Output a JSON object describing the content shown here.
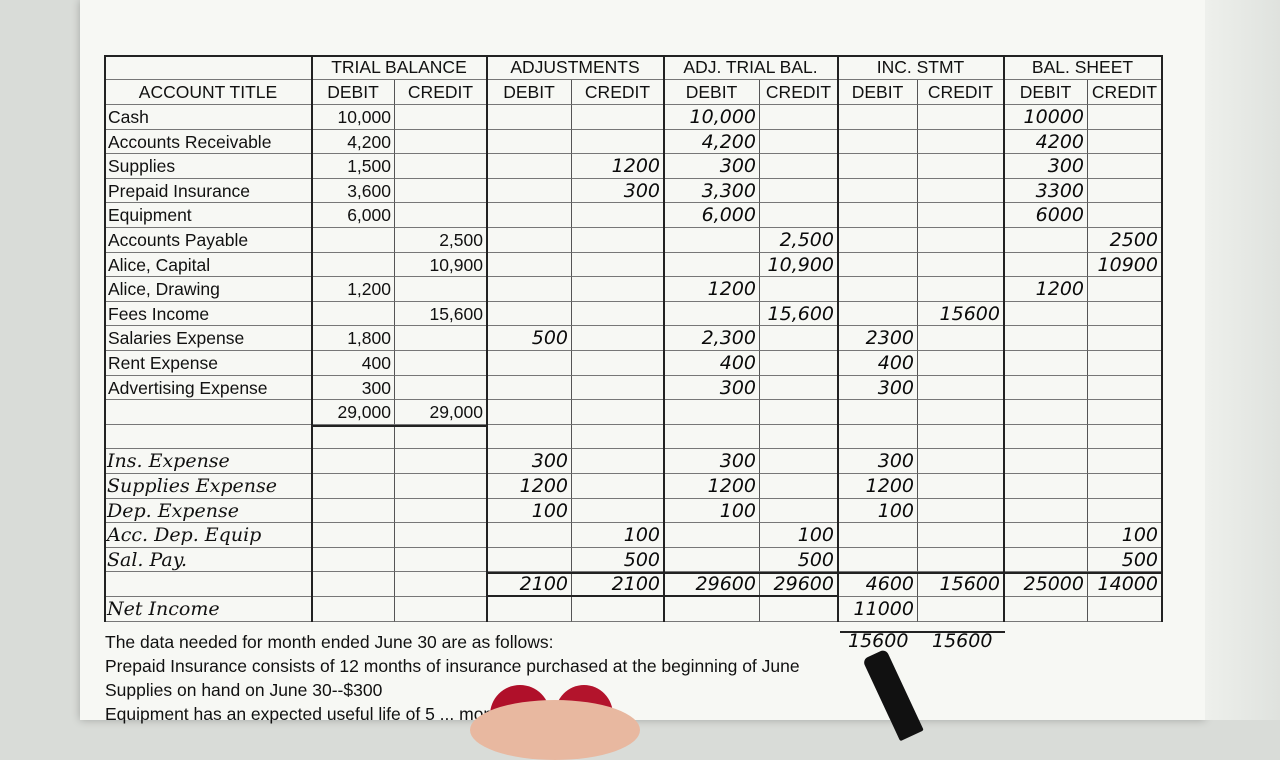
{
  "header": {
    "groups": [
      "TRIAL BALANCE",
      "ADJUSTMENTS",
      "ADJ. TRIAL BAL.",
      "INC. STMT",
      "BAL. SHEET"
    ],
    "account_title": "ACCOUNT TITLE",
    "sub": [
      "DEBIT",
      "CREDIT",
      "DEBIT",
      "CREDIT",
      "DEBIT",
      "CREDIT",
      "DEBIT",
      "CREDIT",
      "DEBIT",
      "CREDIT"
    ]
  },
  "rows": [
    {
      "title": "Cash",
      "v": [
        "10,000",
        "",
        "",
        "",
        "10,000",
        "",
        "",
        "",
        "10000",
        ""
      ]
    },
    {
      "title": "Accounts Receivable",
      "v": [
        "4,200",
        "",
        "",
        "",
        "4,200",
        "",
        "",
        "",
        "4200",
        ""
      ]
    },
    {
      "title": "Supplies",
      "v": [
        "1,500",
        "",
        "",
        "1200",
        "300",
        "",
        "",
        "",
        "300",
        ""
      ]
    },
    {
      "title": "Prepaid Insurance",
      "v": [
        "3,600",
        "",
        "",
        "300",
        "3,300",
        "",
        "",
        "",
        "3300",
        ""
      ]
    },
    {
      "title": "Equipment",
      "v": [
        "6,000",
        "",
        "",
        "",
        "6,000",
        "",
        "",
        "",
        "6000",
        ""
      ]
    },
    {
      "title": "Accounts Payable",
      "v": [
        "",
        "2,500",
        "",
        "",
        "",
        "2,500",
        "",
        "",
        "",
        "2500"
      ]
    },
    {
      "title": "Alice, Capital",
      "v": [
        "",
        "10,900",
        "",
        "",
        "",
        "10,900",
        "",
        "",
        "",
        "10900"
      ]
    },
    {
      "title": "Alice, Drawing",
      "v": [
        "1,200",
        "",
        "",
        "",
        "1200",
        "",
        "",
        "",
        "1200",
        ""
      ]
    },
    {
      "title": "Fees Income",
      "v": [
        "",
        "15,600",
        "",
        "",
        "",
        "15,600",
        "",
        "15600",
        "",
        ""
      ]
    },
    {
      "title": "Salaries Expense",
      "v": [
        "1,800",
        "",
        "500",
        "",
        "2,300",
        "",
        "2300",
        "",
        "",
        ""
      ]
    },
    {
      "title": "Rent Expense",
      "v": [
        "400",
        "",
        "",
        "",
        "400",
        "",
        "400",
        "",
        "",
        ""
      ]
    },
    {
      "title": "Advertising Expense",
      "v": [
        "300",
        "",
        "",
        "",
        "300",
        "",
        "300",
        "",
        "",
        ""
      ]
    },
    {
      "title": "",
      "v": [
        "29,000",
        "29,000",
        "",
        "",
        "",
        "",
        "",
        "",
        "",
        ""
      ]
    },
    {
      "title": "",
      "v": [
        "",
        "",
        "",
        "",
        "",
        "",
        "",
        "",
        "",
        ""
      ]
    },
    {
      "title": "Ins. Expense",
      "hand": true,
      "v": [
        "",
        "",
        "300",
        "",
        "300",
        "",
        "300",
        "",
        "",
        ""
      ]
    },
    {
      "title": "Supplies Expense",
      "hand": true,
      "v": [
        "",
        "",
        "1200",
        "",
        "1200",
        "",
        "1200",
        "",
        "",
        ""
      ]
    },
    {
      "title": "Dep. Expense",
      "hand": true,
      "v": [
        "",
        "",
        "100",
        "",
        "100",
        "",
        "100",
        "",
        "",
        ""
      ]
    },
    {
      "title": "Acc. Dep. Equip",
      "hand": true,
      "v": [
        "",
        "",
        "",
        "100",
        "",
        "100",
        "",
        "",
        "",
        "100"
      ]
    },
    {
      "title": "Sal. Pay.",
      "hand": true,
      "v": [
        "",
        "",
        "",
        "500",
        "",
        "500",
        "",
        "",
        "",
        "500"
      ]
    },
    {
      "title": "",
      "hand": true,
      "v": [
        "",
        "",
        "2100",
        "2100",
        "29600",
        "29600",
        "4600",
        "15600",
        "25000",
        "14000"
      ]
    },
    {
      "title": "Net Income",
      "hand": true,
      "v": [
        "",
        "",
        "",
        "",
        "",
        "",
        "11000",
        "",
        "",
        ""
      ]
    }
  ],
  "inc_stmt_totals": [
    "15600",
    "15600"
  ],
  "notes": [
    "The data needed for month ended June 30 are as follows:",
    "Prepaid Insurance consists of 12 months of insurance purchased at the beginning of June",
    "Supplies on hand on June 30--$300",
    "Equipment has an expected useful life of 5 ... months)"
  ]
}
